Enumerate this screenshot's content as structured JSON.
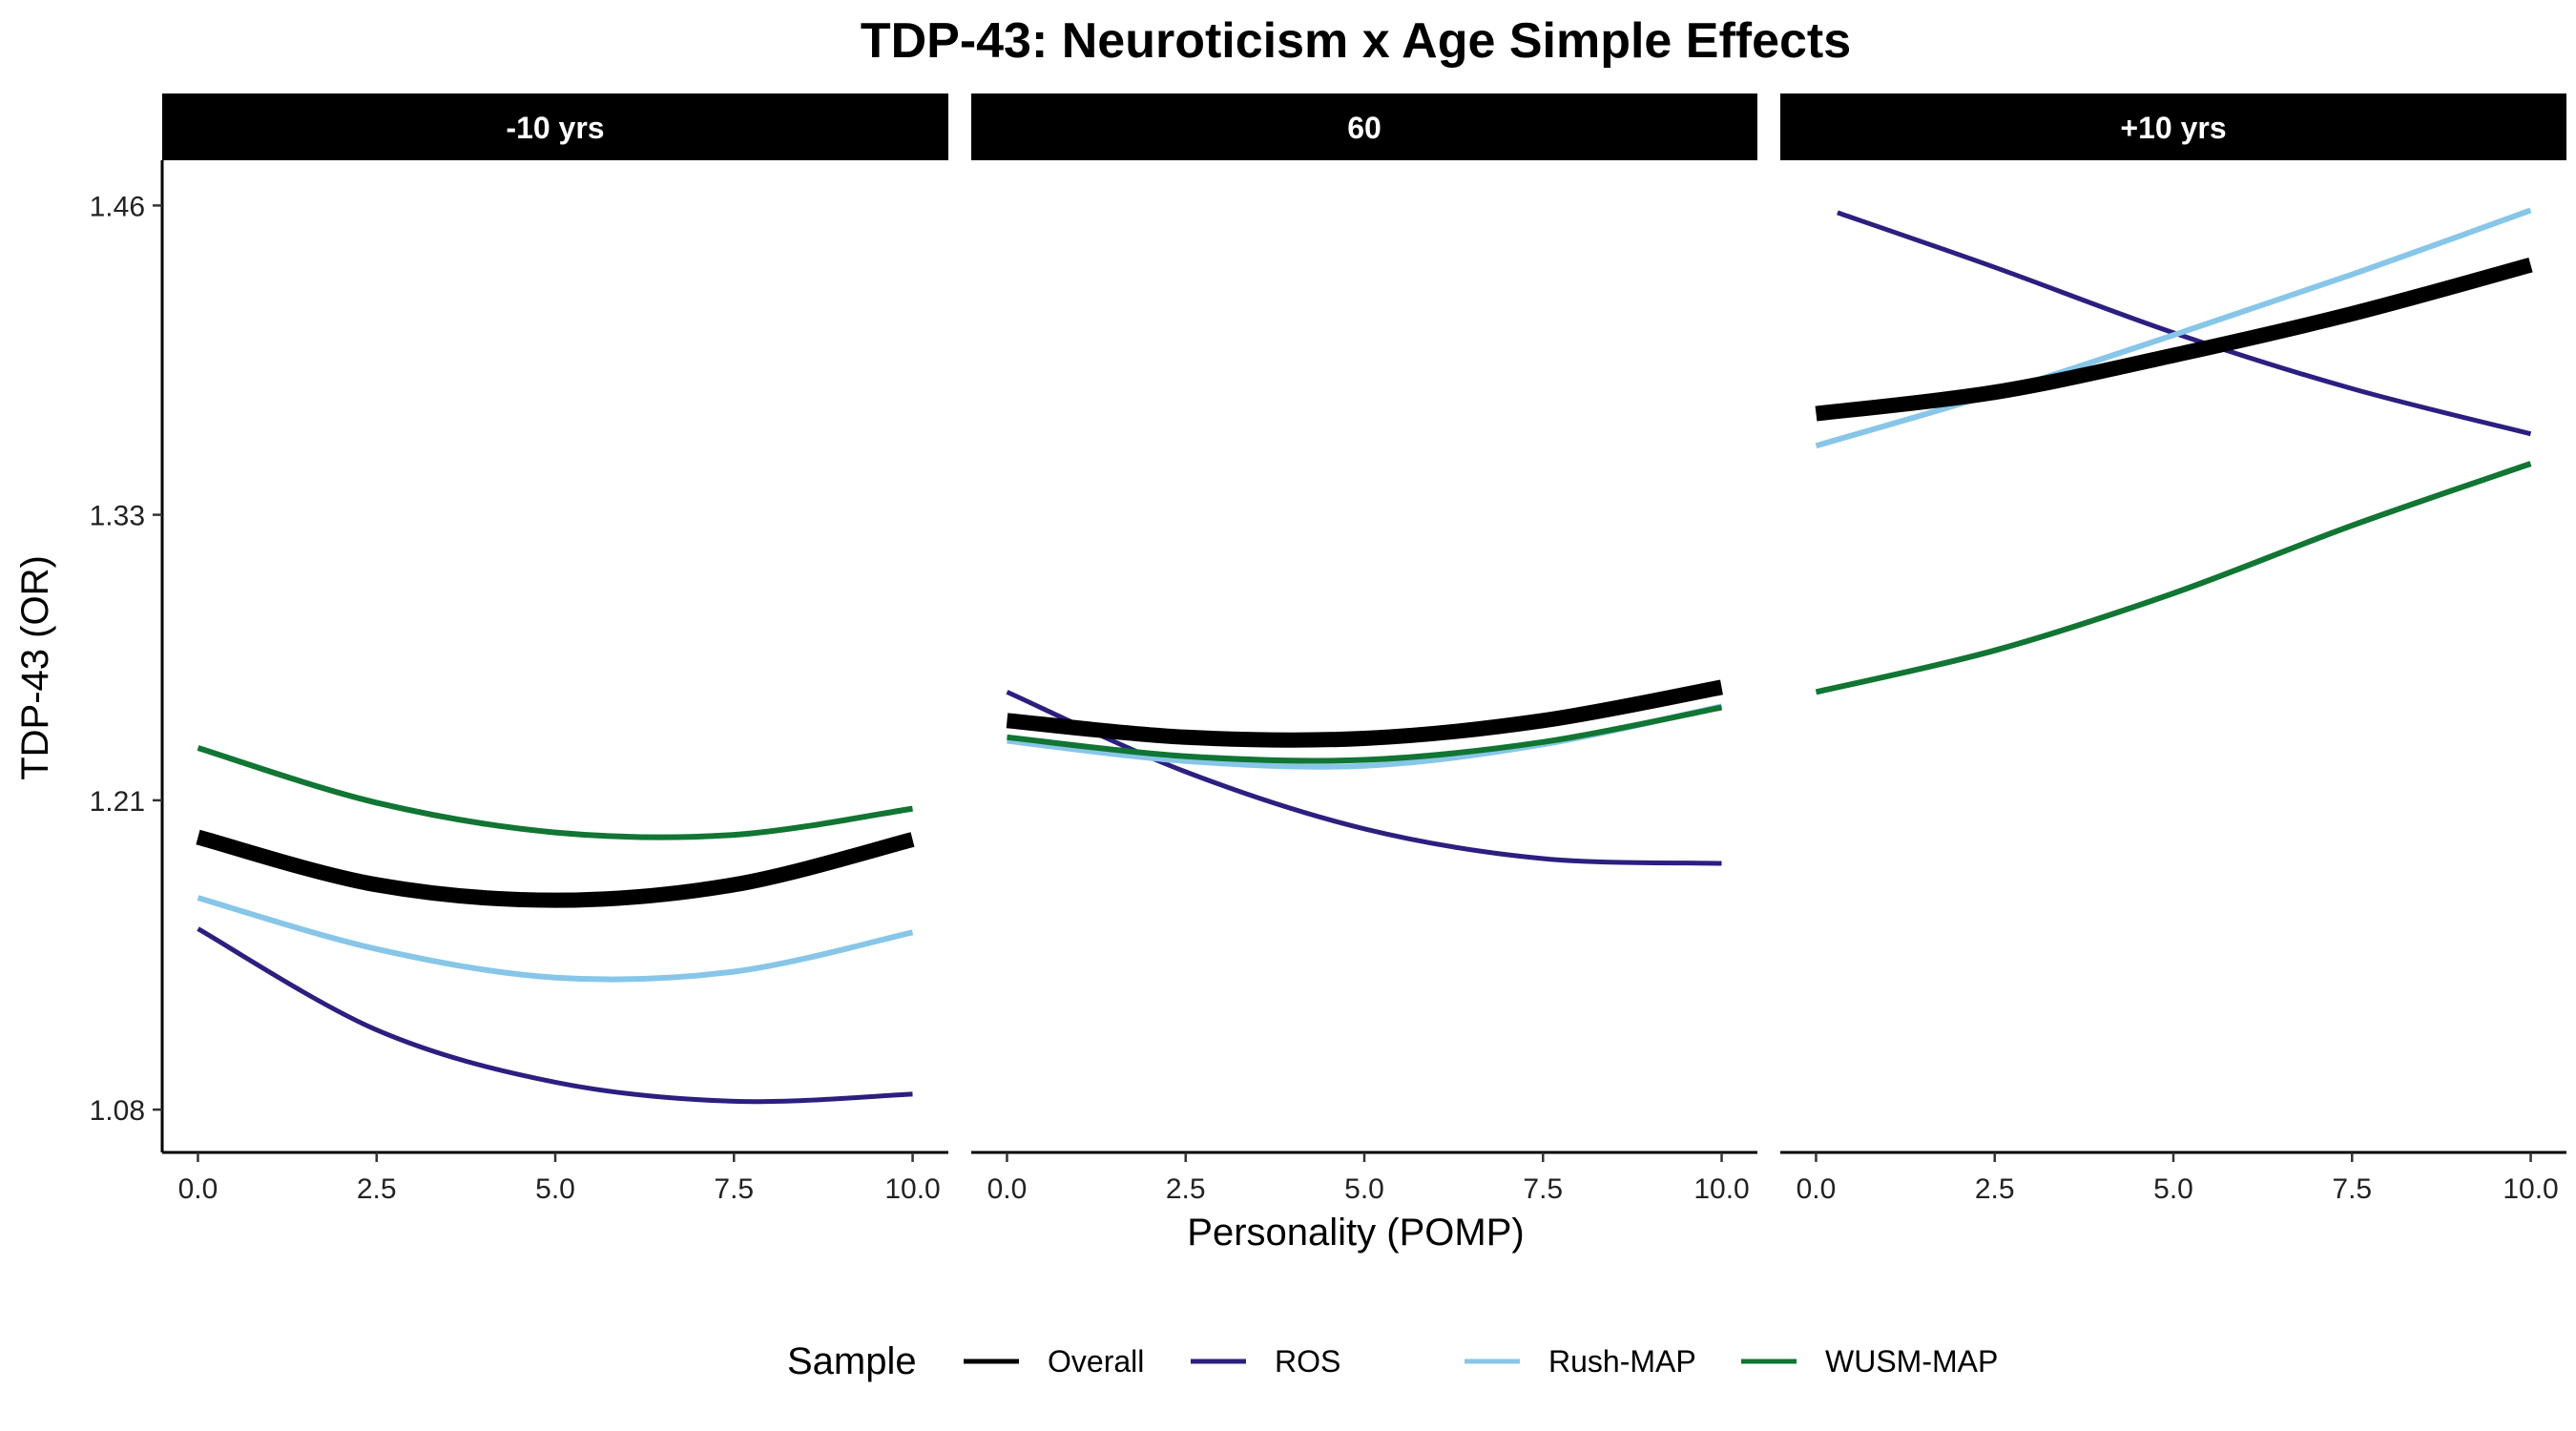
{
  "chart_data": {
    "type": "line",
    "title": "TDP-43: Neuroticism x Age Simple Effects",
    "xlabel": "Personality (POMP)",
    "ylabel": "TDP-43 (OR)",
    "xlim": [
      -0.5,
      10.5
    ],
    "ylim": [
      1.062,
      1.479
    ],
    "x_ticks": [
      0.0,
      2.5,
      5.0,
      7.5,
      10.0
    ],
    "x_tick_labels": [
      "0.0",
      "2.5",
      "5.0",
      "7.5",
      "10.0"
    ],
    "y_ticks": [
      1.08,
      1.21,
      1.33,
      1.46
    ],
    "y_tick_labels": [
      "1.08",
      "1.21",
      "1.33",
      "1.46"
    ],
    "grid": false,
    "legend": {
      "title": "Sample",
      "position": "bottom",
      "entries": [
        "Overall",
        "ROS",
        "Rush-MAP",
        "WUSM-MAP"
      ]
    },
    "colors": {
      "Overall": "#000000",
      "ROS": "#2c1f80",
      "Rush-MAP": "#87c6e8",
      "WUSM-MAP": "#117533"
    },
    "panels": [
      {
        "label": "-10 yrs",
        "series": [
          {
            "name": "Overall",
            "x": [
              0,
              2.5,
              5,
              7.5,
              10
            ],
            "y": [
              1.1945,
              1.1745,
              1.168,
              1.1745,
              1.1935
            ]
          },
          {
            "name": "ROS",
            "x": [
              0,
              2.5,
              5,
              7.5,
              10
            ],
            "y": [
              1.156,
              1.1135,
              1.0915,
              1.0835,
              1.0865
            ]
          },
          {
            "name": "Rush-MAP",
            "x": [
              0,
              2.5,
              5,
              7.5,
              10
            ],
            "y": [
              1.169,
              1.1475,
              1.1355,
              1.138,
              1.1545
            ]
          },
          {
            "name": "WUSM-MAP",
            "x": [
              0,
              2.5,
              5,
              7.5,
              10
            ],
            "y": [
              1.232,
              1.209,
              1.1965,
              1.1955,
              1.2065
            ]
          }
        ]
      },
      {
        "label": "60",
        "series": [
          {
            "name": "Overall",
            "x": [
              0,
              2.5,
              5,
              7.5,
              10
            ],
            "y": [
              1.2435,
              1.2365,
              1.236,
              1.2435,
              1.2575
            ]
          },
          {
            "name": "ROS",
            "x": [
              0,
              2.5,
              5,
              7.5,
              10
            ],
            "y": [
              1.2555,
              1.222,
              1.198,
              1.1855,
              1.1835
            ]
          },
          {
            "name": "Rush-MAP",
            "x": [
              0,
              2.5,
              5,
              7.5,
              10
            ],
            "y": [
              1.235,
              1.2265,
              1.2245,
              1.2335,
              1.2495
            ]
          },
          {
            "name": "WUSM-MAP",
            "x": [
              0,
              2.5,
              5,
              7.5,
              10
            ],
            "y": [
              1.2365,
              1.2285,
              1.227,
              1.2345,
              1.249
            ]
          }
        ]
      },
      {
        "label": "+10 yrs",
        "series": [
          {
            "name": "Overall",
            "x": [
              0,
              2.5,
              5,
              7.5,
              10
            ],
            "y": [
              1.3725,
              1.3815,
              1.397,
              1.4145,
              1.435
            ]
          },
          {
            "name": "ROS",
            "x": [
              0.3,
              2.5,
              5,
              7.5,
              10
            ],
            "y": [
              1.457,
              1.434,
              1.4065,
              1.383,
              1.364
            ]
          },
          {
            "name": "Rush-MAP",
            "x": [
              0,
              2.5,
              5,
              7.5,
              10
            ],
            "y": [
              1.359,
              1.381,
              1.4055,
              1.431,
              1.458
            ]
          },
          {
            "name": "WUSM-MAP",
            "x": [
              0,
              2.5,
              5,
              7.5,
              10
            ],
            "y": [
              1.2555,
              1.273,
              1.297,
              1.3255,
              1.3515
            ]
          }
        ]
      }
    ]
  }
}
